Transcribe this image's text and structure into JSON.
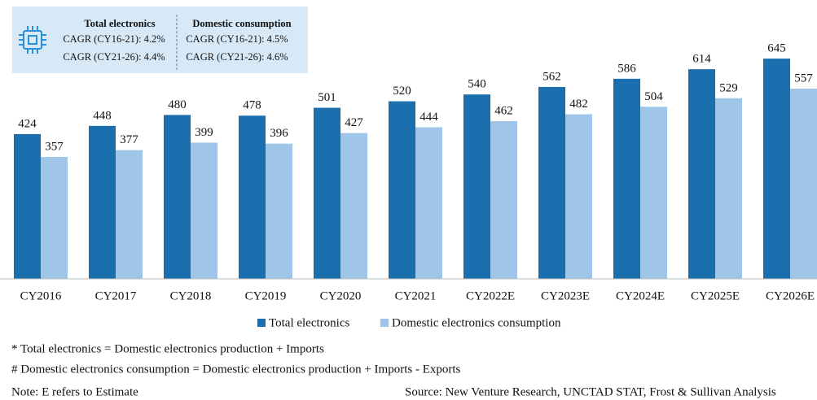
{
  "chart_data": {
    "type": "bar",
    "categories": [
      "CY2016",
      "CY2017",
      "CY2018",
      "CY2019",
      "CY2020",
      "CY2021",
      "CY2022E",
      "CY2023E",
      "CY2024E",
      "CY2025E",
      "CY2026E"
    ],
    "series": [
      {
        "name": "Total electronics",
        "color": "#1b6fae",
        "values": [
          424,
          448,
          480,
          478,
          501,
          520,
          540,
          562,
          586,
          614,
          645
        ]
      },
      {
        "name": "Domestic electronics consumption",
        "color": "#9fc5e8",
        "values": [
          357,
          377,
          399,
          396,
          427,
          444,
          462,
          482,
          504,
          529,
          557
        ]
      }
    ],
    "cagr_box": {
      "left": {
        "heading": "Total electronics",
        "lines": [
          "CAGR (CY16-21): 4.2%",
          "CAGR (CY21-26): 4.4%"
        ]
      },
      "right": {
        "heading": "Domestic consumption",
        "lines": [
          "CAGR (CY16-21): 4.5%",
          "CAGR (CY21-26): 4.6%"
        ]
      }
    },
    "footnotes": [
      "* Total electronics = Domestic electronics production + Imports",
      "# Domestic electronics consumption = Domestic electronics production + Imports - Exports"
    ],
    "note": "Note: E refers to Estimate",
    "source": "Source: New Venture Research, UNCTAD STAT, Frost & Sullivan Analysis"
  }
}
